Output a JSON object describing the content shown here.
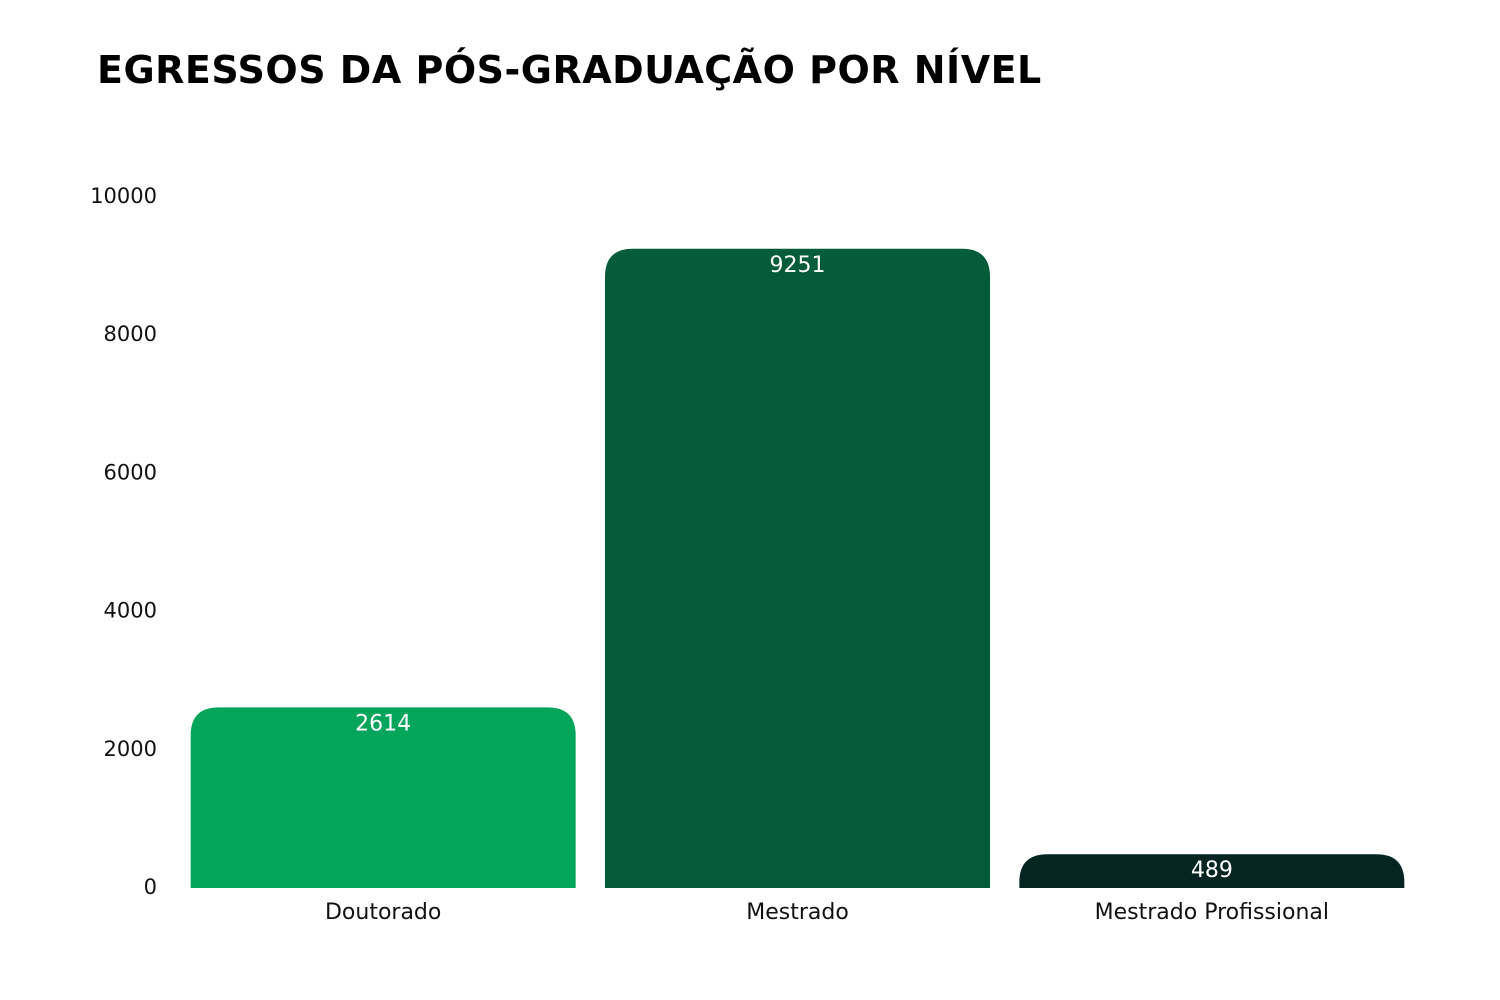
{
  "chart_data": {
    "type": "bar",
    "title": "EGRESSOS DA PÓS-GRADUAÇÃO POR NÍVEL",
    "xlabel": "",
    "ylabel": "",
    "categories": [
      "Doutorado",
      "Mestrado",
      "Mestrado Profissional"
    ],
    "values": [
      2614,
      9251,
      489
    ],
    "ylim": [
      0,
      10000
    ],
    "yticks": [
      0,
      2000,
      4000,
      6000,
      8000,
      10000
    ],
    "grid": false,
    "legend": "none",
    "data_labels": true,
    "colors": [
      "#05a55b",
      "#055c3b",
      "#042522"
    ]
  }
}
